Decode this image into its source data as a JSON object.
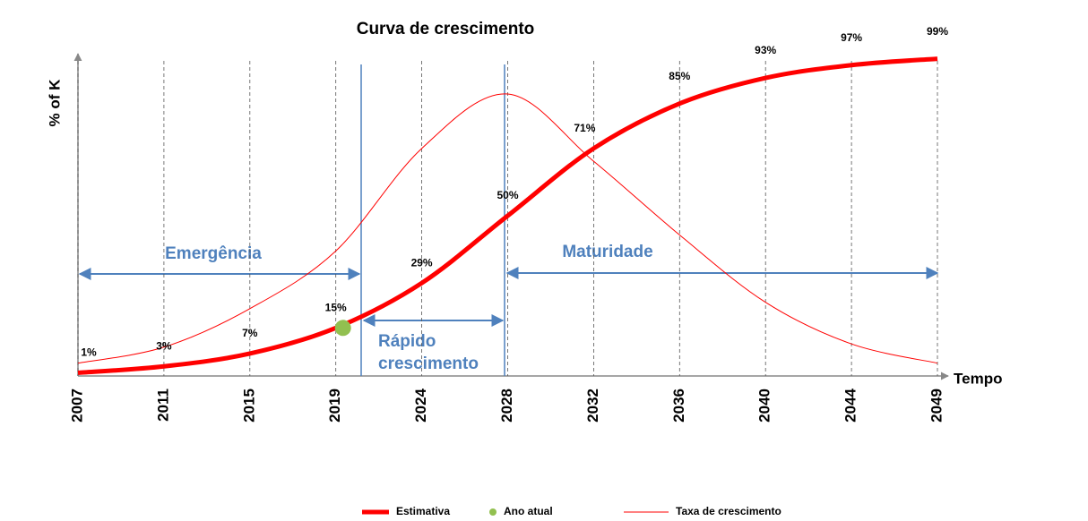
{
  "chart_data": {
    "type": "line",
    "title": "Curva de crescimento",
    "y_label": "% of K",
    "x_label": "Tempo",
    "annotations": [
      "Emergência",
      "Maturidade",
      "Rápido",
      "crescimento"
    ],
    "categories": [
      "2007",
      "2011",
      "2015",
      "2019",
      "2024",
      "2028",
      "2032",
      "2036",
      "2040",
      "2044",
      "2049"
    ],
    "ylim": [
      0,
      100
    ],
    "series": [
      {
        "name": "Estimativa",
        "color": "#ff0000",
        "values": [
          1,
          3,
          7,
          15,
          29,
          50,
          71,
          85,
          93,
          97,
          99
        ],
        "value_labels": [
          "1%",
          "3%",
          "7%",
          "15%",
          "29%",
          "50%",
          "71%",
          "85%",
          "93%",
          "97%",
          "99%"
        ]
      },
      {
        "name": "Ano atual",
        "color": "#92c050",
        "values": [
          null,
          null,
          null,
          15,
          null,
          null,
          null,
          null,
          null,
          null,
          null
        ]
      },
      {
        "name": "Taxa de crescimento",
        "color": "#ff0000",
        "values": [
          4,
          9,
          21,
          39,
          71,
          88,
          67,
          44,
          23,
          10,
          4
        ]
      }
    ]
  }
}
